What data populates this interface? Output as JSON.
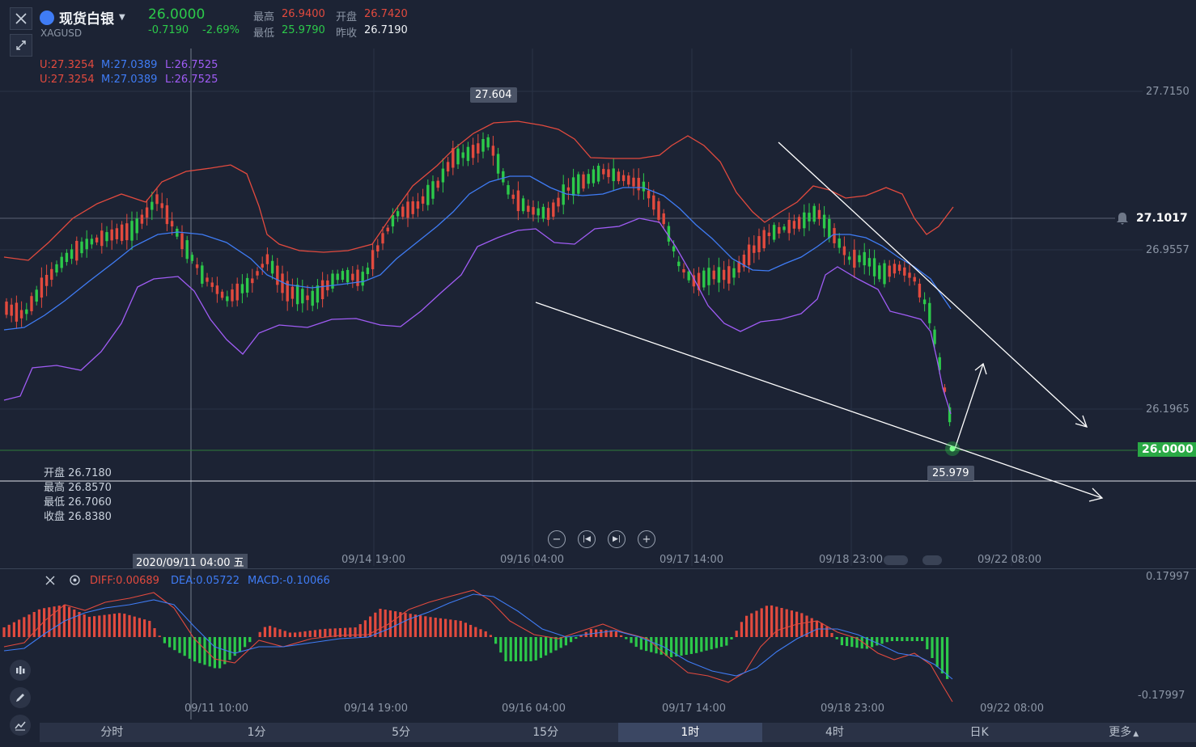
{
  "header": {
    "name": "现货白银",
    "code": "XAGUSD",
    "price": "26.0000",
    "change": "-0.7190",
    "change_pct": "-2.69%",
    "high_label": "最高",
    "high": "26.9400",
    "open_label": "开盘",
    "open": "26.7420",
    "low_label": "最低",
    "low": "25.9790",
    "prev_label": "昨收",
    "prev": "26.7190"
  },
  "boll": {
    "u": "U:27.3254",
    "m": "M:27.0389",
    "l": "L:26.7525"
  },
  "boll2": {
    "u": "U:27.3254",
    "m": "M:27.0389",
    "l": "L:26.7525"
  },
  "price_axis": {
    "p1": "27.7150",
    "p2": "26.9557",
    "p3": "26.1965",
    "alert": "27.1017",
    "current": "26.0000"
  },
  "labels": {
    "peak": "27.604",
    "trough": "25.979"
  },
  "ohlc": {
    "open": "开盘 26.7180",
    "high": "最高 26.8570",
    "low": "最低 26.7060",
    "close": "收盘 26.8380"
  },
  "time_axis_main": {
    "cursor": "2020/09/11 04:00 五",
    "t1": "09/14 19:00",
    "t2": "09/16 04:00",
    "t3": "09/17 14:00",
    "t4": "09/18 23:00",
    "t5": "09/22 08:00"
  },
  "macd": {
    "diff": "DIFF:0.00689",
    "dea": "DEA:0.05722",
    "macd": "MACD:-0.10066",
    "top": "0.17997",
    "bottom": "-0.17997"
  },
  "time_axis_macd": {
    "t0": "09/11 10:00",
    "t1": "09/14 19:00",
    "t2": "09/16 04:00",
    "t3": "09/17 14:00",
    "t4": "09/18 23:00",
    "t5": "09/22 08:00"
  },
  "tabs": [
    "分时",
    "1分",
    "5分",
    "15分",
    "1时",
    "4时",
    "日K",
    "更多"
  ],
  "active_tab": "1时",
  "colors": {
    "bg": "#1c2334",
    "up": "#2cc94a",
    "down": "#e24a3e",
    "upper": "#e24a3e",
    "mid": "#3f7cf5",
    "lower": "#a05cf5"
  }
}
